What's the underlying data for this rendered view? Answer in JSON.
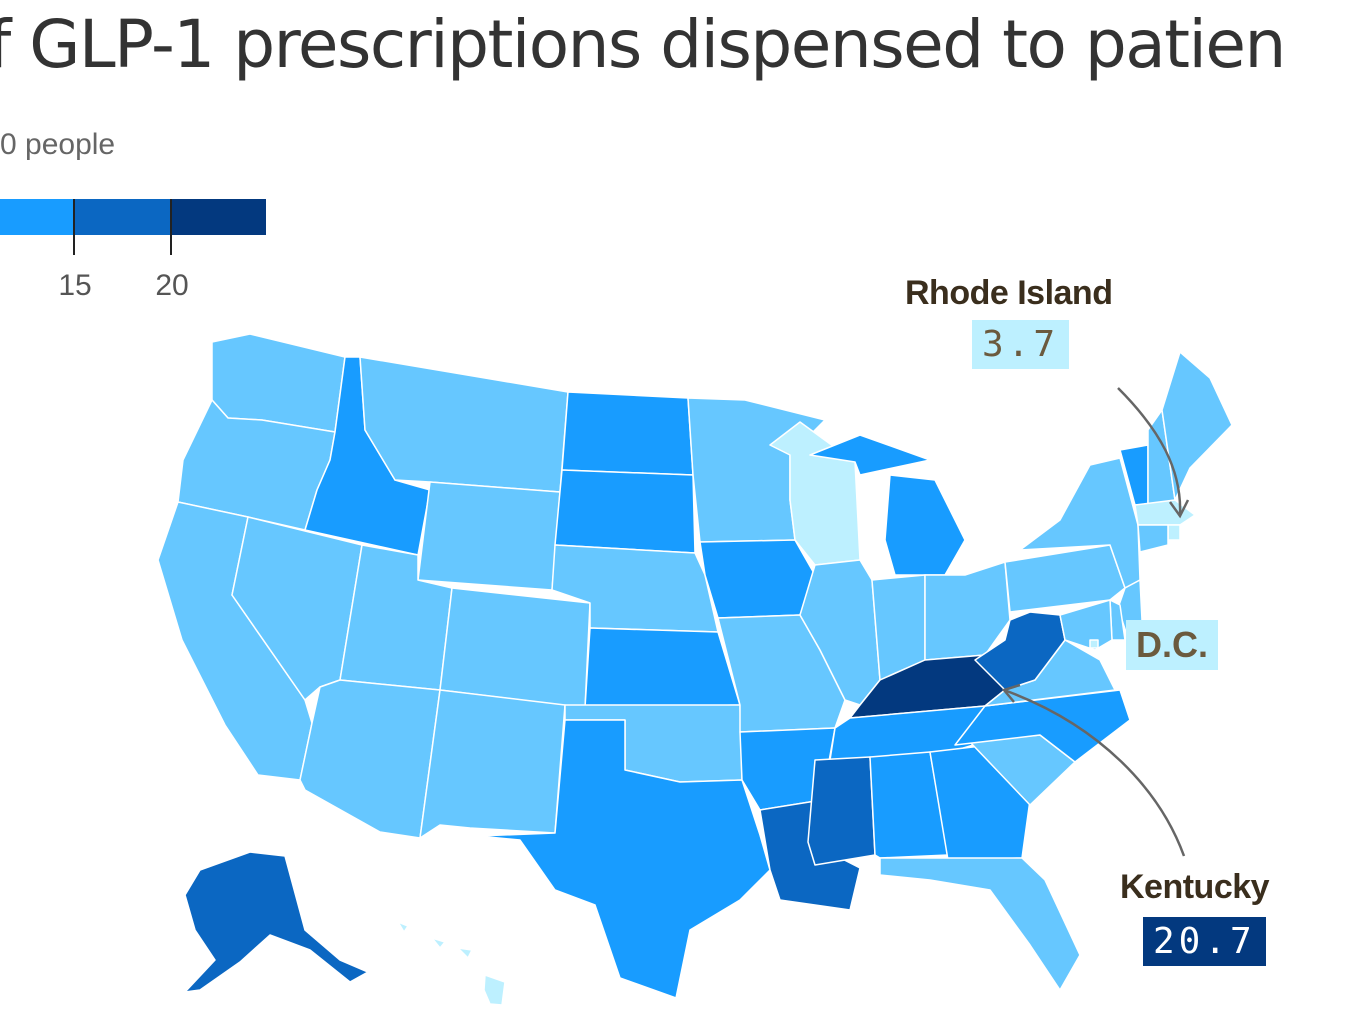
{
  "header": {
    "title": "f GLP-1 prescriptions dispensed to patien",
    "subtitle": "0 people"
  },
  "legend": {
    "ticks": [
      "15",
      "20"
    ]
  },
  "colors": {
    "lightest": "#bdf0ff",
    "light": "#66c7ff",
    "mid": "#189cff",
    "dark": "#0b67c2",
    "darkest": "#03397f",
    "border": "#ffffff"
  },
  "callouts": {
    "rhode_island": {
      "name": "Rhode Island",
      "value": "3.7"
    },
    "dc": {
      "name": "D.C."
    },
    "kentucky": {
      "name": "Kentucky",
      "value": "20.7"
    }
  },
  "chart_data": {
    "type": "choropleth",
    "bins": [
      "<15 (light)",
      "15-20",
      ">20"
    ],
    "states": {
      "Washington": "light",
      "Oregon": "light",
      "California": "light",
      "Nevada": "light",
      "Idaho": "mid",
      "Montana": "light",
      "Wyoming": "light",
      "Utah": "light",
      "Arizona": "light",
      "Colorado": "light",
      "New Mexico": "light",
      "North Dakota": "mid",
      "South Dakota": "mid",
      "Nebraska": "light",
      "Kansas": "mid",
      "Oklahoma": "light",
      "Texas": "mid",
      "Minnesota": "light",
      "Iowa": "mid",
      "Missouri": "light",
      "Arkansas": "mid",
      "Louisiana": "dark",
      "Wisconsin": "lightest",
      "Illinois": "light",
      "Michigan": "mid",
      "Indiana": "light",
      "Ohio": "light",
      "Kentucky": "darkest",
      "Tennessee": "mid",
      "Mississippi": "dark",
      "Alabama": "mid",
      "Georgia": "mid",
      "Florida": "light",
      "South Carolina": "light",
      "North Carolina": "mid",
      "Virginia": "light",
      "West Virginia": "dark",
      "Pennsylvania": "light",
      "New York": "light",
      "Vermont": "mid",
      "New Hampshire": "light",
      "Maine": "light",
      "Massachusetts": "lightest",
      "Rhode Island": "lightest",
      "Connecticut": "light",
      "New Jersey": "light",
      "Delaware": "light",
      "Maryland": "light",
      "District of Columbia": "lightest",
      "Alaska": "dark",
      "Hawaii": "lightest"
    },
    "highlighted": [
      {
        "state": "Rhode Island",
        "value": 3.7
      },
      {
        "state": "Kentucky",
        "value": 20.7
      }
    ]
  }
}
